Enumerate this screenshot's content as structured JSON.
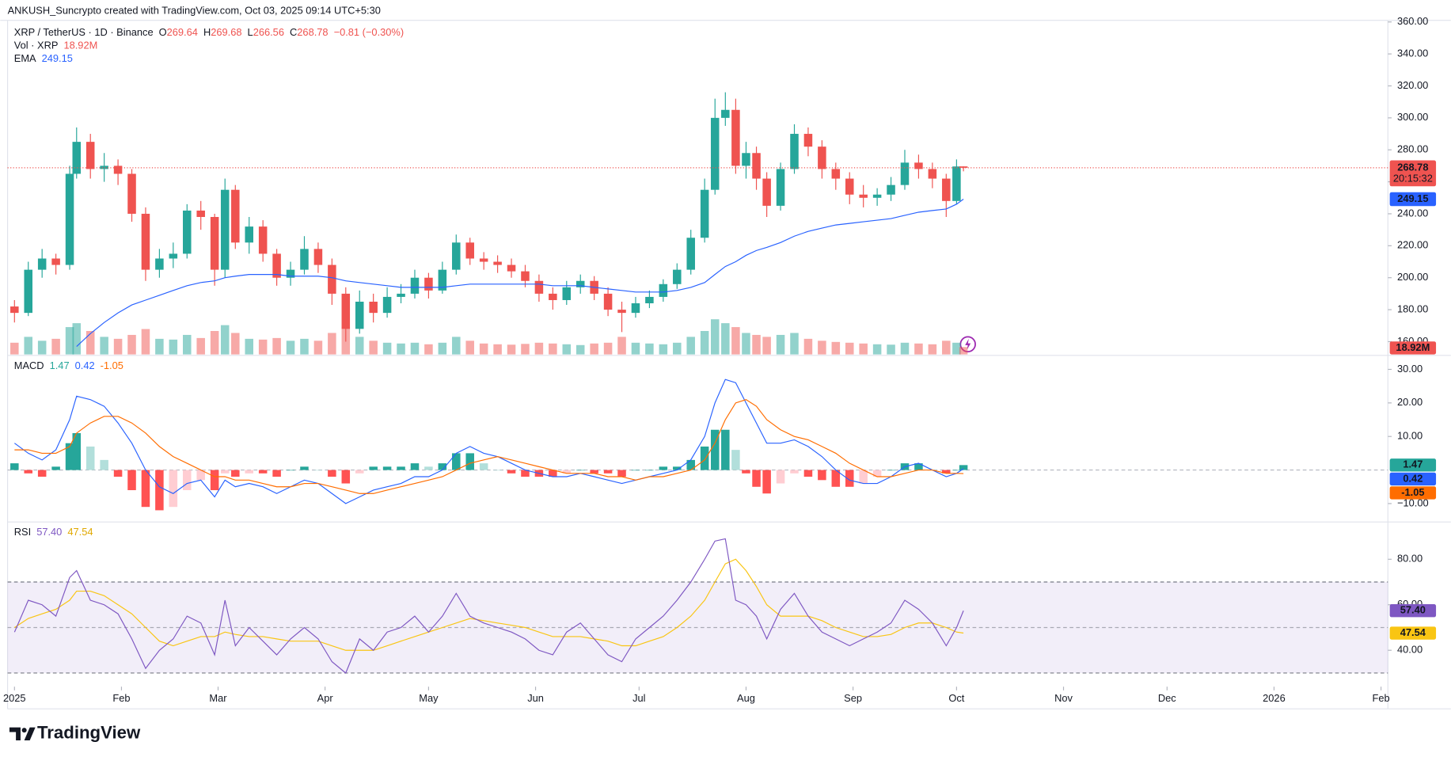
{
  "chart_data": {
    "type": "candlestick",
    "watermark": "ANKUSH_Suncrypto created with TradingView.com, Oct 03, 2025 09:14 UTC+5:30",
    "symbol": "XRP / TetherUS · 1D · Binance",
    "ohlc_labels": [
      "O",
      "H",
      "L",
      "C"
    ],
    "change": "−0.81 (−0.30%)",
    "brand": "TradingView",
    "x": [
      0,
      4,
      8,
      12,
      16,
      18,
      22,
      26,
      30,
      34,
      38,
      42,
      46,
      50,
      54,
      58,
      61,
      64,
      68,
      72,
      76,
      80,
      84,
      88,
      92,
      96,
      100,
      104,
      108,
      112,
      116,
      120,
      124,
      128,
      132,
      136,
      140,
      144,
      148,
      152,
      156,
      160,
      164,
      168,
      172,
      176,
      180,
      184,
      188,
      192,
      196,
      200,
      203,
      206,
      209,
      212,
      215,
      218,
      222,
      226,
      230,
      234,
      238,
      242,
      246,
      250,
      254,
      258,
      262,
      266,
      270,
      273,
      275
    ],
    "xlim": [
      -2,
      398
    ],
    "xticks": [
      {
        "value": 0,
        "label": "2025"
      },
      {
        "value": 31,
        "label": "Feb"
      },
      {
        "value": 59,
        "label": "Mar"
      },
      {
        "value": 90,
        "label": "Apr"
      },
      {
        "value": 120,
        "label": "May"
      },
      {
        "value": 151,
        "label": "Jun"
      },
      {
        "value": 181,
        "label": "Jul"
      },
      {
        "value": 212,
        "label": "Aug"
      },
      {
        "value": 243,
        "label": "Sep"
      },
      {
        "value": 273,
        "label": "Oct"
      },
      {
        "value": 304,
        "label": "Nov"
      },
      {
        "value": 334,
        "label": "Dec"
      },
      {
        "value": 365,
        "label": "2026"
      },
      {
        "value": 396,
        "label": "Feb"
      }
    ],
    "open": [
      182,
      178,
      205,
      212,
      208,
      265,
      285,
      268,
      270,
      265,
      240,
      205,
      212,
      215,
      242,
      238,
      205,
      255,
      222,
      232,
      215,
      200,
      205,
      218,
      208,
      190,
      168,
      185,
      178,
      188,
      190,
      200,
      192,
      205,
      222,
      212,
      210,
      208,
      204,
      198,
      190,
      186,
      194,
      198,
      190,
      180,
      178,
      184,
      188,
      196,
      205,
      225,
      255,
      300,
      305,
      270,
      278,
      262,
      245,
      268,
      290,
      282,
      268,
      262,
      252,
      250,
      252,
      258,
      272,
      268,
      262,
      248,
      269.64
    ],
    "high": [
      186,
      210,
      218,
      215,
      270,
      294,
      290,
      278,
      274,
      268,
      244,
      218,
      222,
      246,
      248,
      240,
      262,
      258,
      238,
      236,
      218,
      210,
      226,
      222,
      212,
      194,
      192,
      190,
      194,
      196,
      205,
      203,
      210,
      227,
      225,
      216,
      214,
      212,
      208,
      202,
      194,
      198,
      202,
      201,
      194,
      185,
      188,
      192,
      199,
      209,
      230,
      262,
      312,
      316,
      312,
      285,
      282,
      266,
      272,
      296,
      294,
      286,
      272,
      266,
      258,
      256,
      263,
      280,
      277,
      272,
      265,
      274,
      269.68
    ],
    "low": [
      172,
      176,
      200,
      202,
      205,
      262,
      262,
      260,
      258,
      235,
      198,
      200,
      206,
      212,
      230,
      195,
      200,
      218,
      215,
      210,
      195,
      195,
      202,
      203,
      183,
      160,
      165,
      172,
      175,
      184,
      187,
      187,
      190,
      202,
      208,
      205,
      203,
      200,
      194,
      185,
      180,
      183,
      190,
      186,
      176,
      166,
      175,
      181,
      185,
      193,
      202,
      222,
      252,
      295,
      265,
      262,
      255,
      238,
      242,
      265,
      276,
      262,
      255,
      246,
      244,
      245,
      248,
      255,
      262,
      256,
      238,
      246,
      266.56
    ],
    "close": [
      178,
      205,
      212,
      208,
      265,
      285,
      268,
      270,
      265,
      240,
      205,
      212,
      215,
      242,
      238,
      205,
      255,
      222,
      232,
      215,
      200,
      205,
      218,
      208,
      190,
      168,
      185,
      178,
      188,
      190,
      200,
      192,
      205,
      222,
      212,
      210,
      208,
      204,
      198,
      190,
      186,
      194,
      198,
      190,
      180,
      178,
      184,
      188,
      196,
      205,
      225,
      255,
      300,
      305,
      270,
      278,
      262,
      245,
      268,
      290,
      282,
      268,
      262,
      252,
      250,
      252,
      258,
      272,
      268,
      262,
      248,
      269.59,
      268.78
    ],
    "up_color": "#26a69a",
    "down_color": "#ef5350",
    "ylim": [
      152,
      361
    ],
    "yticks": [
      {
        "value": 160,
        "label": "160.00"
      },
      {
        "value": 180,
        "label": "180.00"
      },
      {
        "value": 200,
        "label": "200.00"
      },
      {
        "value": 220,
        "label": "220.00"
      },
      {
        "value": 240,
        "label": "240.00"
      },
      {
        "value": 260,
        "label": "260.00"
      },
      {
        "value": 280,
        "label": "280.00"
      },
      {
        "value": 300,
        "label": "300.00"
      },
      {
        "value": 320,
        "label": "320.00"
      },
      {
        "value": 340,
        "label": "340.00"
      },
      {
        "value": 360,
        "label": "360.00"
      }
    ],
    "countdown": "20:15:32",
    "volume": {
      "name": "Vol · XRP",
      "values": [
        30,
        45,
        35,
        40,
        70,
        80,
        60,
        45,
        40,
        50,
        65,
        40,
        38,
        50,
        42,
        60,
        75,
        55,
        40,
        38,
        42,
        35,
        40,
        35,
        55,
        70,
        45,
        35,
        30,
        28,
        30,
        26,
        30,
        45,
        35,
        28,
        26,
        25,
        27,
        30,
        28,
        26,
        24,
        28,
        30,
        45,
        30,
        28,
        26,
        30,
        45,
        60,
        90,
        80,
        70,
        55,
        50,
        45,
        50,
        55,
        40,
        35,
        32,
        30,
        28,
        26,
        25,
        30,
        28,
        26,
        35,
        30,
        18.92
      ],
      "value_labels": [
        null,
        null,
        null,
        null,
        null,
        null,
        null,
        null,
        null,
        null,
        null,
        null,
        null,
        null,
        null,
        null,
        null,
        null,
        null,
        null,
        null,
        null,
        null,
        null,
        null,
        null,
        null,
        null,
        null,
        null,
        null,
        null,
        null,
        null,
        null,
        null,
        null,
        null,
        null,
        null,
        null,
        null,
        null,
        null,
        null,
        null,
        null,
        null,
        null,
        null,
        null,
        null,
        null,
        null,
        null,
        null,
        null,
        null,
        null,
        null,
        null,
        null,
        null,
        null,
        null,
        null,
        null,
        null,
        null,
        null,
        null,
        null,
        "18.92M"
      ]
    },
    "ema": {
      "name": "EMA",
      "color": "#2962ff",
      "values": [
        null,
        null,
        null,
        null,
        null,
        157,
        165,
        172,
        178,
        183,
        186,
        189,
        192,
        195,
        197,
        198,
        200,
        201,
        202,
        202,
        202,
        201,
        201,
        201,
        200,
        198,
        197,
        196,
        195,
        194,
        194,
        194,
        194,
        195,
        196,
        196,
        196,
        196,
        196,
        196,
        195,
        195,
        195,
        194,
        193,
        192,
        191,
        191,
        191,
        192,
        194,
        197,
        202,
        207,
        210,
        214,
        217,
        219,
        222,
        226,
        229,
        231,
        233,
        234,
        235,
        236,
        237,
        239,
        241,
        242,
        243,
        246,
        249.15
      ]
    },
    "macd": {
      "title": "MACD",
      "ylim": [
        -15.2,
        33.9
      ],
      "yticks": [
        {
          "value": -10,
          "label": "−10.00"
        },
        {
          "value": 10,
          "label": "10.00"
        },
        {
          "value": 20,
          "label": "20.00"
        },
        {
          "value": 30,
          "label": "30.00"
        }
      ],
      "histogram": {
        "colors": {
          "grow_above": "#26a69a",
          "fall_above": "#b2dfdb",
          "grow_below": "#ffcdd2",
          "fall_below": "#ff5252"
        },
        "values": [
          2,
          -1,
          -2,
          1,
          8,
          11,
          7,
          3,
          -2,
          -6,
          -11,
          -12,
          -11,
          -6,
          -3,
          -6,
          -1,
          -2,
          -1,
          -1,
          -2,
          0,
          1,
          0,
          -2,
          -4,
          -1,
          1,
          1,
          1,
          2,
          1,
          2,
          5,
          5,
          2,
          0,
          -1,
          -2,
          -2,
          -2,
          -1,
          0,
          -1,
          -1,
          -2,
          0,
          0,
          1,
          1,
          3,
          7,
          12,
          12,
          6,
          -1,
          -5,
          -7,
          -4,
          -1,
          -2,
          -3,
          -5,
          -5,
          -4,
          -2,
          0,
          2,
          2,
          0,
          -1,
          0,
          1.47
        ]
      },
      "macd": {
        "color": "#2962ff",
        "values": [
          8,
          5,
          3,
          6,
          15,
          22,
          21,
          19,
          14,
          8,
          0,
          -5,
          -7,
          -4,
          -3,
          -8,
          -3,
          -5,
          -4,
          -5,
          -7,
          -5,
          -3,
          -4,
          -7,
          -10,
          -8,
          -6,
          -5,
          -4,
          -2,
          -2,
          0,
          5,
          7,
          5,
          4,
          2,
          0,
          -1,
          -2,
          -2,
          -1,
          -2,
          -3,
          -4,
          -3,
          -2,
          -1,
          0,
          3,
          10,
          20,
          27,
          26,
          20,
          14,
          8,
          8,
          9,
          7,
          4,
          0,
          -3,
          -4,
          -4,
          -2,
          1,
          2,
          0,
          -2,
          -1,
          0.42
        ]
      },
      "signal": {
        "color": "#ff6d00",
        "values": [
          6,
          6,
          5,
          5,
          7,
          11,
          14,
          16,
          16,
          14,
          11,
          7,
          4,
          2,
          0,
          -2,
          -2,
          -3,
          -3,
          -4,
          -5,
          -5,
          -4,
          -4,
          -5,
          -6,
          -7,
          -7,
          -6,
          -5,
          -4,
          -3,
          -2,
          0,
          2,
          3,
          4,
          3,
          2,
          1,
          0,
          -1,
          -1,
          -1,
          -2,
          -2,
          -3,
          -2,
          -2,
          -1,
          0,
          3,
          8,
          15,
          20,
          21,
          19,
          15,
          12,
          10,
          9,
          7,
          5,
          2,
          0,
          -2,
          -2,
          -1,
          0,
          0,
          -1,
          -1,
          -1.05
        ]
      }
    },
    "rsi": {
      "title": "RSI",
      "ylim": [
        24,
        96
      ],
      "yticks": [
        {
          "value": 40,
          "label": "40.00"
        },
        {
          "value": 60,
          "label": "60.00"
        },
        {
          "value": 80,
          "label": "80.00"
        }
      ],
      "band": [
        30,
        70
      ],
      "middle": 50,
      "band_color": "#7e57c2",
      "rsi": {
        "color": "#7e57c2",
        "values": [
          48,
          62,
          60,
          55,
          72,
          75,
          62,
          60,
          56,
          45,
          32,
          40,
          45,
          55,
          52,
          38,
          62,
          42,
          50,
          44,
          38,
          45,
          50,
          45,
          35,
          30,
          45,
          40,
          48,
          50,
          55,
          48,
          55,
          65,
          55,
          52,
          50,
          48,
          45,
          40,
          38,
          48,
          52,
          45,
          38,
          35,
          45,
          50,
          55,
          62,
          70,
          80,
          88,
          89,
          62,
          60,
          55,
          45,
          58,
          65,
          55,
          48,
          45,
          42,
          45,
          48,
          52,
          62,
          58,
          52,
          42,
          50,
          57.4
        ],
        "value_labels": [
          null,
          null,
          null,
          null,
          null,
          null,
          null,
          null,
          null,
          null,
          null,
          null,
          null,
          null,
          null,
          null,
          null,
          null,
          null,
          null,
          null,
          null,
          null,
          null,
          null,
          null,
          null,
          null,
          null,
          null,
          null,
          null,
          null,
          null,
          null,
          null,
          null,
          null,
          null,
          null,
          null,
          null,
          null,
          null,
          null,
          null,
          null,
          null,
          null,
          null,
          null,
          null,
          null,
          null,
          null,
          null,
          null,
          null,
          null,
          null,
          null,
          null,
          null,
          null,
          null,
          null,
          null,
          null,
          null,
          null,
          null,
          null,
          "57.40"
        ]
      },
      "ma": {
        "color": "#f9c513",
        "values": [
          50,
          54,
          56,
          58,
          62,
          66,
          66,
          64,
          60,
          56,
          50,
          44,
          42,
          44,
          46,
          46,
          48,
          47,
          46,
          46,
          45,
          44,
          44,
          44,
          42,
          40,
          40,
          40,
          42,
          44,
          46,
          48,
          50,
          52,
          54,
          53,
          52,
          51,
          50,
          48,
          46,
          46,
          46,
          45,
          44,
          42,
          42,
          44,
          46,
          50,
          55,
          62,
          70,
          78,
          80,
          75,
          68,
          60,
          55,
          55,
          55,
          53,
          50,
          48,
          46,
          46,
          47,
          50,
          52,
          52,
          50,
          48,
          47.54
        ]
      }
    }
  }
}
